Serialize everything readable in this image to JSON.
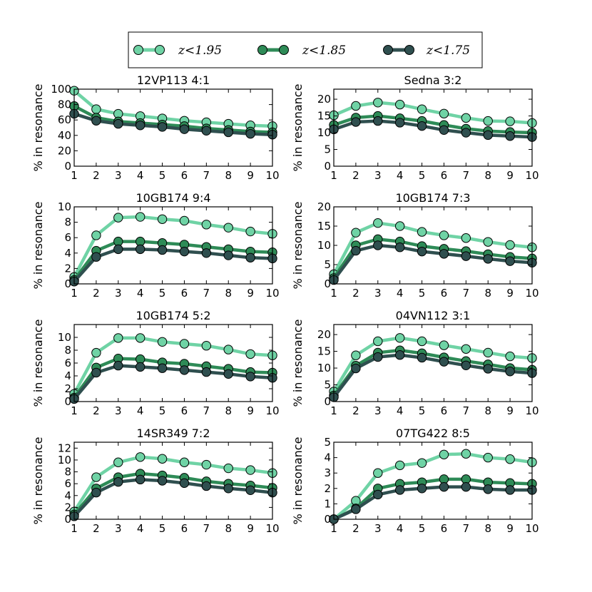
{
  "legend": {
    "placement": "top-center",
    "entries": [
      {
        "label": "z<1.95",
        "color": "#6FD3A5"
      },
      {
        "label": "z<1.85",
        "color": "#2E8B57"
      },
      {
        "label": "z<1.75",
        "color": "#2F4F4F"
      }
    ]
  },
  "chart_data": [
    {
      "type": "line",
      "title": "12VP113 4:1",
      "ylabel": "% in resonance",
      "xlabel": "",
      "x": [
        1,
        2,
        3,
        4,
        5,
        6,
        7,
        8,
        9,
        10
      ],
      "xlim": [
        1,
        10
      ],
      "ylim": [
        0,
        100
      ],
      "yticks": [
        0,
        20,
        40,
        60,
        80,
        100
      ],
      "series": [
        {
          "name": "z<1.95",
          "values": [
            98,
            74,
            68,
            65,
            62,
            59,
            57,
            55,
            53,
            52
          ]
        },
        {
          "name": "z<1.85",
          "values": [
            78,
            63,
            58,
            56,
            54,
            52,
            49,
            47,
            45,
            44
          ]
        },
        {
          "name": "z<1.75",
          "values": [
            68,
            59,
            55,
            53,
            51,
            48,
            46,
            44,
            42,
            41
          ]
        }
      ]
    },
    {
      "type": "line",
      "title": "Sedna 3:2",
      "ylabel": "% in resonance",
      "xlabel": "",
      "x": [
        1,
        2,
        3,
        4,
        5,
        6,
        7,
        8,
        9,
        10
      ],
      "xlim": [
        1,
        10
      ],
      "ylim": [
        0,
        23
      ],
      "yticks": [
        0,
        5,
        10,
        15,
        20
      ],
      "series": [
        {
          "name": "z<1.95",
          "values": [
            15.2,
            18.0,
            19.0,
            18.4,
            17.0,
            15.7,
            14.4,
            13.5,
            13.4,
            12.9
          ]
        },
        {
          "name": "z<1.85",
          "values": [
            12.3,
            14.5,
            15.0,
            14.3,
            13.5,
            12.3,
            11.2,
            10.5,
            10.2,
            10.0
          ]
        },
        {
          "name": "z<1.75",
          "values": [
            11.0,
            13.2,
            13.5,
            13.0,
            12.0,
            10.8,
            10.0,
            9.3,
            9.0,
            8.7
          ]
        }
      ]
    },
    {
      "type": "line",
      "title": "10GB174 9:4",
      "ylabel": "% in resonance",
      "xlabel": "",
      "x": [
        1,
        2,
        3,
        4,
        5,
        6,
        7,
        8,
        9,
        10
      ],
      "xlim": [
        1,
        10
      ],
      "ylim": [
        0,
        10
      ],
      "yticks": [
        0,
        2,
        4,
        6,
        8,
        10
      ],
      "series": [
        {
          "name": "z<1.95",
          "values": [
            0.9,
            6.3,
            8.6,
            8.7,
            8.4,
            8.2,
            7.7,
            7.3,
            6.8,
            6.5
          ]
        },
        {
          "name": "z<1.85",
          "values": [
            0.5,
            4.3,
            5.5,
            5.5,
            5.3,
            5.1,
            4.8,
            4.5,
            4.2,
            4.1
          ]
        },
        {
          "name": "z<1.75",
          "values": [
            0.3,
            3.5,
            4.5,
            4.5,
            4.4,
            4.2,
            4.0,
            3.7,
            3.4,
            3.3
          ]
        }
      ]
    },
    {
      "type": "line",
      "title": "10GB174 7:3",
      "ylabel": "% in resonance",
      "xlabel": "",
      "x": [
        1,
        2,
        3,
        4,
        5,
        6,
        7,
        8,
        9,
        10
      ],
      "xlim": [
        1,
        10
      ],
      "ylim": [
        0,
        20
      ],
      "yticks": [
        0,
        5,
        10,
        15,
        20
      ],
      "series": [
        {
          "name": "z<1.95",
          "values": [
            2.5,
            13.3,
            15.8,
            15.0,
            13.5,
            12.6,
            11.9,
            10.9,
            10.1,
            9.5
          ]
        },
        {
          "name": "z<1.85",
          "values": [
            1.5,
            10.0,
            11.6,
            11.0,
            9.8,
            9.1,
            8.5,
            7.7,
            7.0,
            6.6
          ]
        },
        {
          "name": "z<1.75",
          "values": [
            1.0,
            8.6,
            10.0,
            9.5,
            8.4,
            7.8,
            7.2,
            6.5,
            5.9,
            5.5
          ]
        }
      ]
    },
    {
      "type": "line",
      "title": "10GB174 5:2",
      "ylabel": "% in resonance",
      "xlabel": "",
      "x": [
        1,
        2,
        3,
        4,
        5,
        6,
        7,
        8,
        9,
        10
      ],
      "xlim": [
        1,
        10
      ],
      "ylim": [
        0,
        12
      ],
      "yticks": [
        0,
        2,
        4,
        6,
        8,
        10
      ],
      "series": [
        {
          "name": "z<1.95",
          "values": [
            1.2,
            7.6,
            9.9,
            9.9,
            9.3,
            9.0,
            8.7,
            8.1,
            7.4,
            7.2
          ]
        },
        {
          "name": "z<1.85",
          "values": [
            0.6,
            5.3,
            6.7,
            6.6,
            6.1,
            5.9,
            5.5,
            5.1,
            4.6,
            4.5
          ]
        },
        {
          "name": "z<1.75",
          "values": [
            0.4,
            4.5,
            5.6,
            5.4,
            5.2,
            4.9,
            4.6,
            4.3,
            3.9,
            3.7
          ]
        }
      ]
    },
    {
      "type": "line",
      "title": "04VN112 3:1",
      "ylabel": "% in resonance",
      "xlabel": "",
      "x": [
        1,
        2,
        3,
        4,
        5,
        6,
        7,
        8,
        9,
        10
      ],
      "xlim": [
        1,
        10
      ],
      "ylim": [
        0,
        23
      ],
      "yticks": [
        0,
        5,
        10,
        15,
        20
      ],
      "series": [
        {
          "name": "z<1.95",
          "values": [
            3.0,
            13.8,
            18.0,
            19.0,
            18.0,
            16.8,
            15.7,
            14.6,
            13.5,
            13.0
          ]
        },
        {
          "name": "z<1.85",
          "values": [
            1.8,
            10.7,
            14.6,
            15.3,
            14.4,
            13.2,
            12.1,
            11.1,
            10.0,
            9.5
          ]
        },
        {
          "name": "z<1.75",
          "values": [
            1.3,
            9.9,
            13.3,
            13.9,
            13.1,
            11.9,
            10.8,
            9.8,
            9.0,
            8.5
          ]
        }
      ]
    },
    {
      "type": "line",
      "title": "14SR349 7:2",
      "ylabel": "% in resonance",
      "xlabel": "",
      "x": [
        1,
        2,
        3,
        4,
        5,
        6,
        7,
        8,
        9,
        10
      ],
      "xlim": [
        1,
        10
      ],
      "ylim": [
        0,
        13
      ],
      "yticks": [
        0,
        2,
        4,
        6,
        8,
        10,
        12
      ],
      "series": [
        {
          "name": "z<1.95",
          "values": [
            1.3,
            7.1,
            9.6,
            10.5,
            10.2,
            9.6,
            9.2,
            8.6,
            8.3,
            7.8
          ]
        },
        {
          "name": "z<1.85",
          "values": [
            0.8,
            5.2,
            7.1,
            7.7,
            7.4,
            7.0,
            6.4,
            6.0,
            5.7,
            5.3
          ]
        },
        {
          "name": "z<1.75",
          "values": [
            0.5,
            4.5,
            6.3,
            6.7,
            6.5,
            6.1,
            5.6,
            5.2,
            4.9,
            4.5
          ]
        }
      ]
    },
    {
      "type": "line",
      "title": "07TG422 8:5",
      "ylabel": "% in resonance",
      "xlabel": "",
      "x": [
        1,
        2,
        3,
        4,
        5,
        6,
        7,
        8,
        9,
        10
      ],
      "xlim": [
        1,
        10
      ],
      "ylim": [
        0,
        5
      ],
      "yticks": [
        0,
        1,
        2,
        3,
        4,
        5
      ],
      "series": [
        {
          "name": "z<1.95",
          "values": [
            0.0,
            1.2,
            3.0,
            3.5,
            3.65,
            4.2,
            4.25,
            4.0,
            3.9,
            3.7
          ]
        },
        {
          "name": "z<1.85",
          "values": [
            0.0,
            0.7,
            2.0,
            2.3,
            2.4,
            2.6,
            2.6,
            2.4,
            2.35,
            2.3
          ]
        },
        {
          "name": "z<1.75",
          "values": [
            0.0,
            0.65,
            1.6,
            1.9,
            2.0,
            2.1,
            2.1,
            1.95,
            1.9,
            1.9
          ]
        }
      ]
    }
  ]
}
